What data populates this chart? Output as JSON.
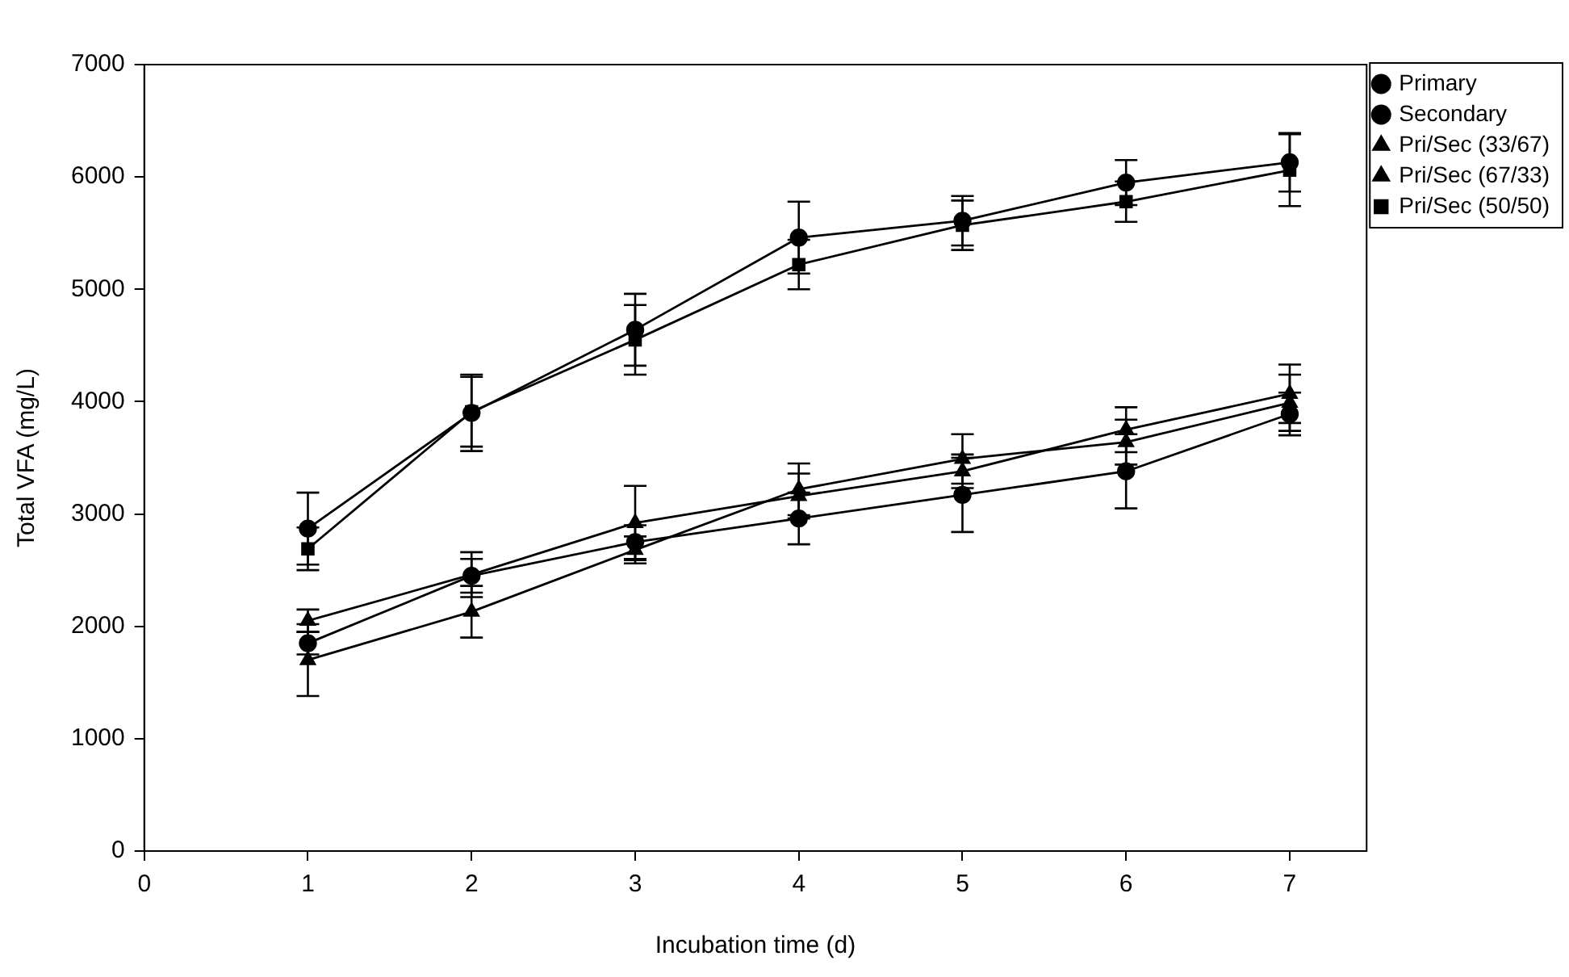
{
  "chart_data": {
    "type": "line",
    "xlabel": "Incubation time (d)",
    "ylabel": "Total VFA (mg/L)",
    "x": [
      1,
      2,
      3,
      4,
      5,
      6,
      7
    ],
    "xlim": [
      0,
      7.47
    ],
    "xticks": [
      0,
      1,
      2,
      3,
      4,
      5,
      6,
      7
    ],
    "ylim": [
      0,
      7000
    ],
    "yticks": [
      0,
      1000,
      2000,
      3000,
      4000,
      5000,
      6000,
      7000
    ],
    "grid": false,
    "legend": "top right",
    "line_style": "solid",
    "series": [
      {
        "name": "Primary",
        "color": "#000000",
        "marker": "circle",
        "values": [
          2870,
          3900,
          4640,
          5460,
          5610,
          5950,
          6130
        ],
        "errors": [
          320,
          340,
          320,
          320,
          220,
          200,
          260
        ]
      },
      {
        "name": "Secondary",
        "color": "#000000",
        "marker": "circle",
        "values": [
          1850,
          2450,
          2750,
          2960,
          3170,
          3380,
          3890
        ],
        "errors": [
          100,
          150,
          150,
          230,
          330,
          330,
          190
        ]
      },
      {
        "name": "Pri/Sec (33/67)",
        "color": "#000000",
        "marker": "triangle",
        "values": [
          1700,
          2130,
          2680,
          3220,
          3490,
          3640,
          3990
        ],
        "errors": [
          320,
          230,
          120,
          230,
          220,
          200,
          250
        ]
      },
      {
        "name": "Pri/Sec (67/33)",
        "color": "#000000",
        "marker": "triangle",
        "values": [
          2050,
          2460,
          2920,
          3160,
          3380,
          3750,
          4070
        ],
        "errors": [
          100,
          200,
          330,
          200,
          150,
          200,
          260
        ]
      },
      {
        "name": "Pri/Sec (50/50)",
        "color": "#000000",
        "marker": "square",
        "values": [
          2690,
          3910,
          4550,
          5220,
          5570,
          5780,
          6060
        ],
        "errors": [
          190,
          310,
          310,
          220,
          220,
          180,
          320
        ]
      }
    ]
  }
}
